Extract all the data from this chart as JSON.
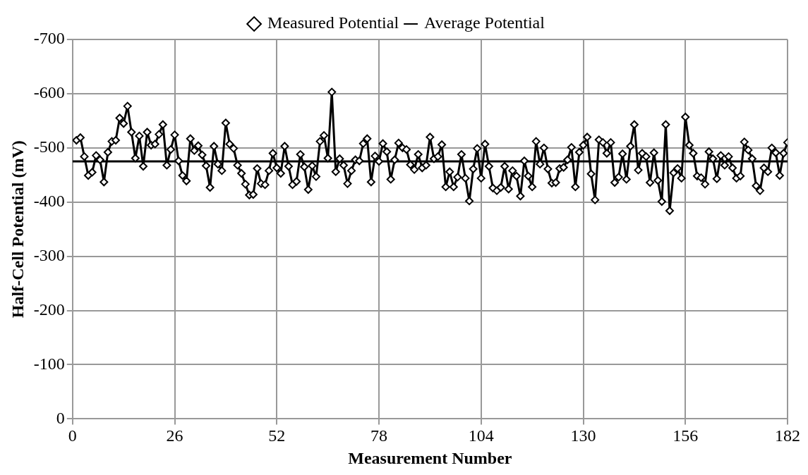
{
  "chart_data": {
    "type": "line",
    "xlabel": "Measurement Number",
    "ylabel": "Half-Cell Potential (mV)",
    "xlim": [
      0,
      182
    ],
    "ylim": [
      0,
      -700
    ],
    "xticks": [
      0,
      26,
      52,
      78,
      104,
      130,
      156,
      182
    ],
    "yticks": [
      0,
      -100,
      -200,
      -300,
      -400,
      -500,
      -600,
      -700
    ],
    "grid": true,
    "legend": "top",
    "series": [
      {
        "name": "Measured Potential",
        "color": "#000000",
        "marker": "diamond",
        "x": [
          1,
          2,
          3,
          4,
          5,
          6,
          7,
          8,
          9,
          10,
          11,
          12,
          13,
          14,
          15,
          16,
          17,
          18,
          19,
          20,
          21,
          22,
          23,
          24,
          25,
          26,
          27,
          28,
          29,
          30,
          31,
          32,
          33,
          34,
          35,
          36,
          37,
          38,
          39,
          40,
          41,
          42,
          43,
          44,
          45,
          46,
          47,
          48,
          49,
          50,
          51,
          52,
          53,
          54,
          55,
          56,
          57,
          58,
          59,
          60,
          61,
          62,
          63,
          64,
          65,
          66,
          67,
          68,
          69,
          70,
          71,
          72,
          73,
          74,
          75,
          76,
          77,
          78,
          79,
          80,
          81,
          82,
          83,
          84,
          85,
          86,
          87,
          88,
          89,
          90,
          91,
          92,
          93,
          94,
          95,
          96,
          97,
          98,
          99,
          100,
          101,
          102,
          103,
          104,
          105,
          106,
          107,
          108,
          109,
          110,
          111,
          112,
          113,
          114,
          115,
          116,
          117,
          118,
          119,
          120,
          121,
          122,
          123,
          124,
          125,
          126,
          127,
          128,
          129,
          130,
          131,
          132,
          133,
          134,
          135,
          136,
          137,
          138,
          139,
          140,
          141,
          142,
          143,
          144,
          145,
          146,
          147,
          148,
          149,
          150,
          151,
          152,
          153,
          154,
          155,
          156,
          157,
          158,
          159,
          160,
          161,
          162,
          163,
          164,
          165,
          166,
          167,
          168,
          169,
          170,
          171,
          172,
          173,
          174,
          175,
          176,
          177,
          178,
          179,
          180,
          181,
          182
        ],
        "values": [
          -514,
          -519,
          -484,
          -449,
          -455,
          -486,
          -478,
          -437,
          -492,
          -512,
          -514,
          -555,
          -545,
          -577,
          -529,
          -481,
          -522,
          -466,
          -529,
          -505,
          -507,
          -525,
          -543,
          -468,
          -497,
          -524,
          -476,
          -449,
          -439,
          -517,
          -495,
          -504,
          -487,
          -467,
          -427,
          -503,
          -470,
          -458,
          -546,
          -507,
          -499,
          -468,
          -453,
          -433,
          -413,
          -414,
          -462,
          -434,
          -432,
          -458,
          -490,
          -463,
          -453,
          -503,
          -466,
          -432,
          -438,
          -488,
          -465,
          -423,
          -467,
          -447,
          -512,
          -523,
          -481,
          -603,
          -456,
          -480,
          -468,
          -434,
          -458,
          -478,
          -476,
          -508,
          -517,
          -437,
          -485,
          -475,
          -508,
          -493,
          -442,
          -478,
          -509,
          -500,
          -497,
          -469,
          -460,
          -488,
          -463,
          -468,
          -520,
          -480,
          -484,
          -506,
          -428,
          -456,
          -428,
          -446,
          -488,
          -444,
          -402,
          -461,
          -499,
          -444,
          -507,
          -466,
          -426,
          -421,
          -427,
          -466,
          -424,
          -458,
          -448,
          -411,
          -476,
          -448,
          -428,
          -512,
          -470,
          -500,
          -461,
          -435,
          -436,
          -462,
          -464,
          -478,
          -501,
          -428,
          -492,
          -505,
          -520,
          -452,
          -404,
          -515,
          -510,
          -490,
          -510,
          -436,
          -446,
          -489,
          -442,
          -503,
          -543,
          -459,
          -490,
          -484,
          -436,
          -491,
          -440,
          -401,
          -543,
          -384,
          -454,
          -462,
          -444,
          -557,
          -505,
          -490,
          -448,
          -445,
          -433,
          -493,
          -480,
          -443,
          -486,
          -468,
          -484,
          -463,
          -444,
          -448,
          -511,
          -496,
          -480,
          -430,
          -421,
          -463,
          -456,
          -500,
          -491,
          -449,
          -490,
          -510
        ]
      },
      {
        "name": "Average Potential",
        "color": "#000000",
        "marker": "none",
        "x": [
          0,
          182
        ],
        "values": [
          -475,
          -475
        ]
      }
    ]
  }
}
